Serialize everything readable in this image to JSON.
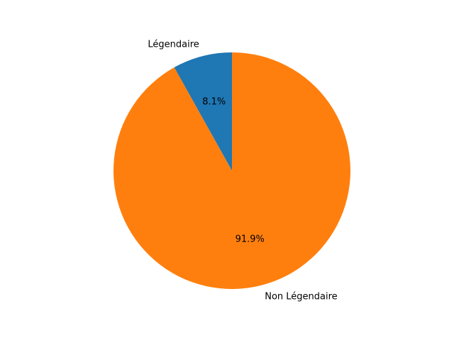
{
  "chart_data": {
    "type": "pie",
    "title": "",
    "start_angle_deg": 90,
    "direction": "counterclockwise",
    "slices": [
      {
        "label": "Légendaire",
        "value": 8.1,
        "pct_label": "8.1%",
        "color": "#1f77b4"
      },
      {
        "label": "Non Légendaire",
        "value": 91.9,
        "pct_label": "91.9%",
        "color": "#ff7f0e"
      }
    ]
  }
}
